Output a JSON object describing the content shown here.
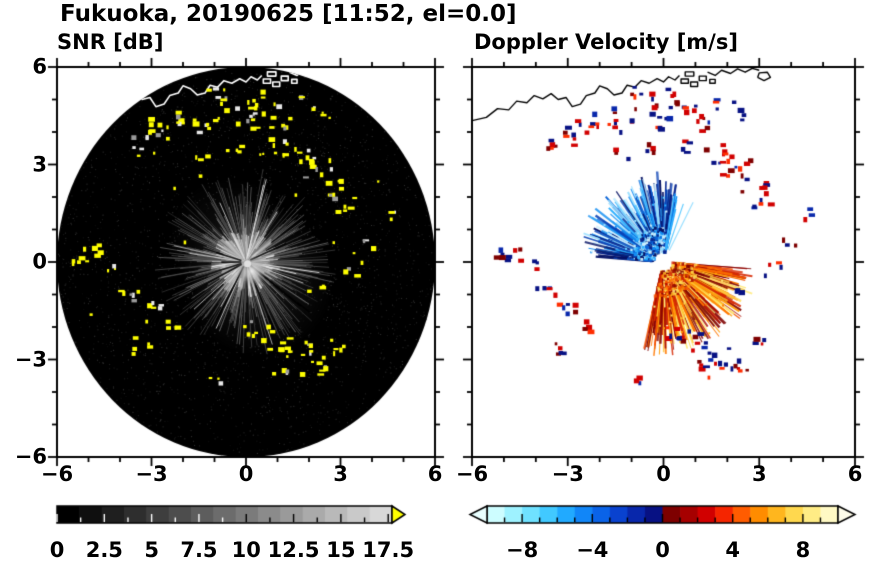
{
  "header": {
    "title": "Fukuoka, 20190625 [11:52, el=0.0]"
  },
  "chart_data": [
    {
      "type": "heatmap",
      "title": "SNR [dB]",
      "xlim": [
        -6,
        6
      ],
      "ylim": [
        -6,
        6
      ],
      "x_ticks": [
        -6,
        -3,
        0,
        3,
        6
      ],
      "x_tick_labels": [
        "−6",
        "−3",
        "0",
        "3",
        "6"
      ],
      "y_ticks": [
        6,
        3,
        0,
        -3,
        -6
      ],
      "y_tick_labels": [
        "6",
        "3",
        "0",
        "−3",
        "−6"
      ],
      "minor_tick_step": 1,
      "grid": false,
      "colorbar": {
        "range": [
          0,
          17.7
        ],
        "ticks": [
          0,
          2.5,
          5,
          7.5,
          10,
          12.5,
          15,
          17.5
        ],
        "tick_labels": [
          "0",
          "2.5",
          "5",
          "7.5",
          "10",
          "12.5",
          "15",
          "17.5"
        ],
        "minor_step": 1.25,
        "segments": 15,
        "start_gray": 0,
        "end_gray": 216,
        "over_color": "#ffff00"
      },
      "content": {
        "disk_radius": 6,
        "disk_color": "#000000",
        "coastline_color": "#ffffff",
        "clutter_color": "#ffff00",
        "clutter_alt_colors": [
          "#e8e8e8",
          "#9a9a9a"
        ],
        "echo_core_center": [
          0.18,
          -0.28
        ],
        "summary": "Radar PPI: black 6-km disk, gray ground-echo fan around origin, yellow high-SNR clutter speckles, shoreline drawn white inside the disk"
      }
    },
    {
      "type": "heatmap",
      "title": "Doppler Velocity [m/s]",
      "xlim": [
        -6,
        6
      ],
      "ylim": [
        -6,
        6
      ],
      "x_ticks": [
        -6,
        -3,
        0,
        3,
        6
      ],
      "x_tick_labels": [
        "−6",
        "−3",
        "0",
        "3",
        "6"
      ],
      "y_ticks": [],
      "y_tick_labels": [],
      "minor_tick_step": 1,
      "grid": false,
      "colorbar": {
        "range": [
          -10,
          10
        ],
        "ticks": [
          -8,
          -4,
          0,
          4,
          8
        ],
        "tick_labels": [
          "−8",
          "−4",
          "0",
          "4",
          "8"
        ],
        "minor_step": 1,
        "segment_colors": [
          "#cdfdff",
          "#9ef2ff",
          "#6fe1ff",
          "#41c9ff",
          "#21aaff",
          "#1186f8",
          "#0a63e8",
          "#0942cf",
          "#0827ab",
          "#071183",
          "#7e0000",
          "#a60000",
          "#d10000",
          "#f52500",
          "#ff5c00",
          "#ff8c00",
          "#ffb61e",
          "#ffd84e",
          "#ffec85",
          "#fff9c4"
        ],
        "under_color": "#e9ffff",
        "over_color": "#fffdea"
      },
      "content": {
        "coastline_color": "#000000",
        "center_gap_radius": 0.3,
        "negative_fan": {
          "angle_deg": [
            78,
            176
          ],
          "max_r": 2.3,
          "palette": [
            "#cdeffe",
            "#9be0ff",
            "#63ccff",
            "#2fb0ff",
            "#128df2",
            "#0a64d8",
            "#0941b4",
            "#07258f",
            "#061264"
          ]
        },
        "positive_fan": {
          "angle_deg": [
            -104,
            -4
          ],
          "max_r": 2.45,
          "palette": [
            "#ffe97a",
            "#ffd84e",
            "#ffbe28",
            "#ff9d0a",
            "#ff7800",
            "#f55000",
            "#d62800",
            "#a80d00",
            "#7e0000"
          ]
        },
        "clutter_palette": [
          "#071183",
          "#0827ab",
          "#d10000",
          "#7e0000",
          "#ff2d00"
        ],
        "summary": "Doppler PPI: approaching (blue) fan NW of radar, receding (orange/red) fan SE of radar, aliased navy/red clutter speckles along coast, black shoreline"
      }
    }
  ],
  "scene": {
    "coastline": [
      [
        [
          -6,
          4.35
        ],
        [
          -5.55,
          4.45
        ],
        [
          -5.2,
          4.72
        ],
        [
          -4.85,
          4.68
        ],
        [
          -4.6,
          4.95
        ],
        [
          -4.28,
          4.9
        ],
        [
          -4.05,
          5.12
        ],
        [
          -3.78,
          5.02
        ],
        [
          -3.52,
          5.18
        ],
        [
          -3.3,
          5.0
        ],
        [
          -3.05,
          5.06
        ],
        [
          -2.86,
          4.78
        ],
        [
          -2.6,
          4.86
        ],
        [
          -2.42,
          5.12
        ],
        [
          -2.15,
          5.2
        ],
        [
          -2.0,
          5.42
        ],
        [
          -1.76,
          5.33
        ],
        [
          -1.55,
          5.14
        ],
        [
          -1.3,
          5.2
        ],
        [
          -1.14,
          5.44
        ],
        [
          -0.9,
          5.38
        ],
        [
          -0.7,
          5.58
        ],
        [
          -0.45,
          5.5
        ],
        [
          -0.2,
          5.64
        ],
        [
          0.0,
          5.54
        ],
        [
          0.16,
          5.7
        ],
        [
          0.36,
          5.6
        ],
        [
          0.5,
          5.74
        ]
      ],
      [
        [
          1.38,
          5.84
        ],
        [
          1.62,
          5.74
        ],
        [
          1.82,
          5.9
        ],
        [
          2.1,
          5.8
        ],
        [
          2.32,
          5.94
        ],
        [
          2.56,
          5.84
        ],
        [
          2.78,
          5.96
        ],
        [
          3.0,
          5.9
        ]
      ],
      [
        [
          2.95,
          5.68
        ],
        [
          3.15,
          5.58
        ],
        [
          3.35,
          5.68
        ],
        [
          3.25,
          5.84
        ],
        [
          3.0,
          5.82
        ],
        [
          2.95,
          5.68
        ]
      ]
    ],
    "harbor_shapes": [
      [
        [
          0.55,
          5.5
        ],
        [
          0.78,
          5.5
        ],
        [
          0.78,
          5.63
        ],
        [
          0.55,
          5.63
        ]
      ],
      [
        [
          0.85,
          5.4
        ],
        [
          1.07,
          5.4
        ],
        [
          1.07,
          5.54
        ],
        [
          0.85,
          5.54
        ]
      ],
      [
        [
          1.12,
          5.58
        ],
        [
          1.34,
          5.58
        ],
        [
          1.34,
          5.72
        ],
        [
          1.12,
          5.72
        ]
      ],
      [
        [
          0.68,
          5.72
        ],
        [
          0.95,
          5.72
        ],
        [
          0.95,
          5.85
        ],
        [
          0.68,
          5.85
        ]
      ],
      [
        [
          1.45,
          5.5
        ],
        [
          1.62,
          5.5
        ],
        [
          1.62,
          5.62
        ],
        [
          1.45,
          5.62
        ]
      ]
    ],
    "clutter_clusters": [
      [
        -3.2,
        3.75,
        8,
        0.35
      ],
      [
        -2.5,
        4.1,
        9,
        0.4
      ],
      [
        -1.85,
        4.5,
        6,
        0.3
      ],
      [
        -1.25,
        4.15,
        5,
        0.25
      ],
      [
        -0.6,
        4.9,
        6,
        0.3
      ],
      [
        0.0,
        4.35,
        6,
        0.3
      ],
      [
        0.6,
        4.6,
        8,
        0.35
      ],
      [
        1.2,
        4.25,
        6,
        0.3
      ],
      [
        1.0,
        3.6,
        5,
        0.3
      ],
      [
        1.7,
        3.35,
        9,
        0.4
      ],
      [
        2.3,
        2.9,
        8,
        0.35
      ],
      [
        2.85,
        2.3,
        7,
        0.3
      ],
      [
        3.15,
        1.75,
        5,
        0.25
      ],
      [
        -0.35,
        3.45,
        4,
        0.2
      ],
      [
        -1.35,
        3.3,
        3,
        0.2
      ],
      [
        0.3,
        5.1,
        4,
        0.25
      ],
      [
        -0.95,
        5.2,
        3,
        0.2
      ],
      [
        1.9,
        4.9,
        4,
        0.25
      ],
      [
        2.6,
        4.5,
        3,
        0.2
      ],
      [
        -4.75,
        0.25,
        7,
        0.3
      ],
      [
        -5.3,
        0.1,
        4,
        0.25
      ],
      [
        -4.2,
        -0.15,
        3,
        0.2
      ],
      [
        -3.6,
        -1.05,
        6,
        0.3
      ],
      [
        -2.95,
        -1.5,
        5,
        0.3
      ],
      [
        -2.25,
        -1.95,
        4,
        0.25
      ],
      [
        -3.4,
        -2.6,
        5,
        0.3
      ],
      [
        0.35,
        -2.1,
        6,
        0.3
      ],
      [
        0.95,
        -2.45,
        8,
        0.35
      ],
      [
        1.6,
        -2.8,
        9,
        0.4
      ],
      [
        2.25,
        -3.15,
        7,
        0.35
      ],
      [
        1.15,
        -3.35,
        4,
        0.25
      ],
      [
        2.85,
        -2.6,
        4,
        0.25
      ],
      [
        3.45,
        -0.25,
        4,
        0.25
      ],
      [
        3.95,
        0.55,
        3,
        0.2
      ],
      [
        4.55,
        1.45,
        3,
        0.2
      ],
      [
        -0.9,
        -3.6,
        3,
        0.2
      ],
      [
        2.2,
        -0.9,
        3,
        0.2
      ]
    ]
  }
}
